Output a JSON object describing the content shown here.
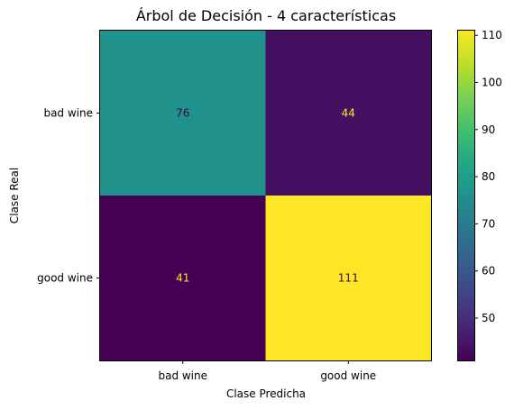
{
  "chart_data": {
    "type": "heatmap",
    "title": "Árbol de Decisión - 4 características",
    "xlabel": "Clase Predicha",
    "ylabel": "Clase Real",
    "x_categories": [
      "bad wine",
      "good wine"
    ],
    "y_categories": [
      "bad wine",
      "good wine"
    ],
    "matrix": [
      [
        76,
        44
      ],
      [
        41,
        111
      ]
    ],
    "cell_labels": [
      "76",
      "44",
      "41",
      "111"
    ],
    "colormap": "viridis",
    "vmin": 41,
    "vmax": 111,
    "colorbar_ticks": [
      "50",
      "60",
      "70",
      "80",
      "90",
      "100",
      "110"
    ],
    "colorbar_tick_values": [
      50,
      60,
      70,
      80,
      90,
      100,
      110
    ],
    "grid": false
  }
}
